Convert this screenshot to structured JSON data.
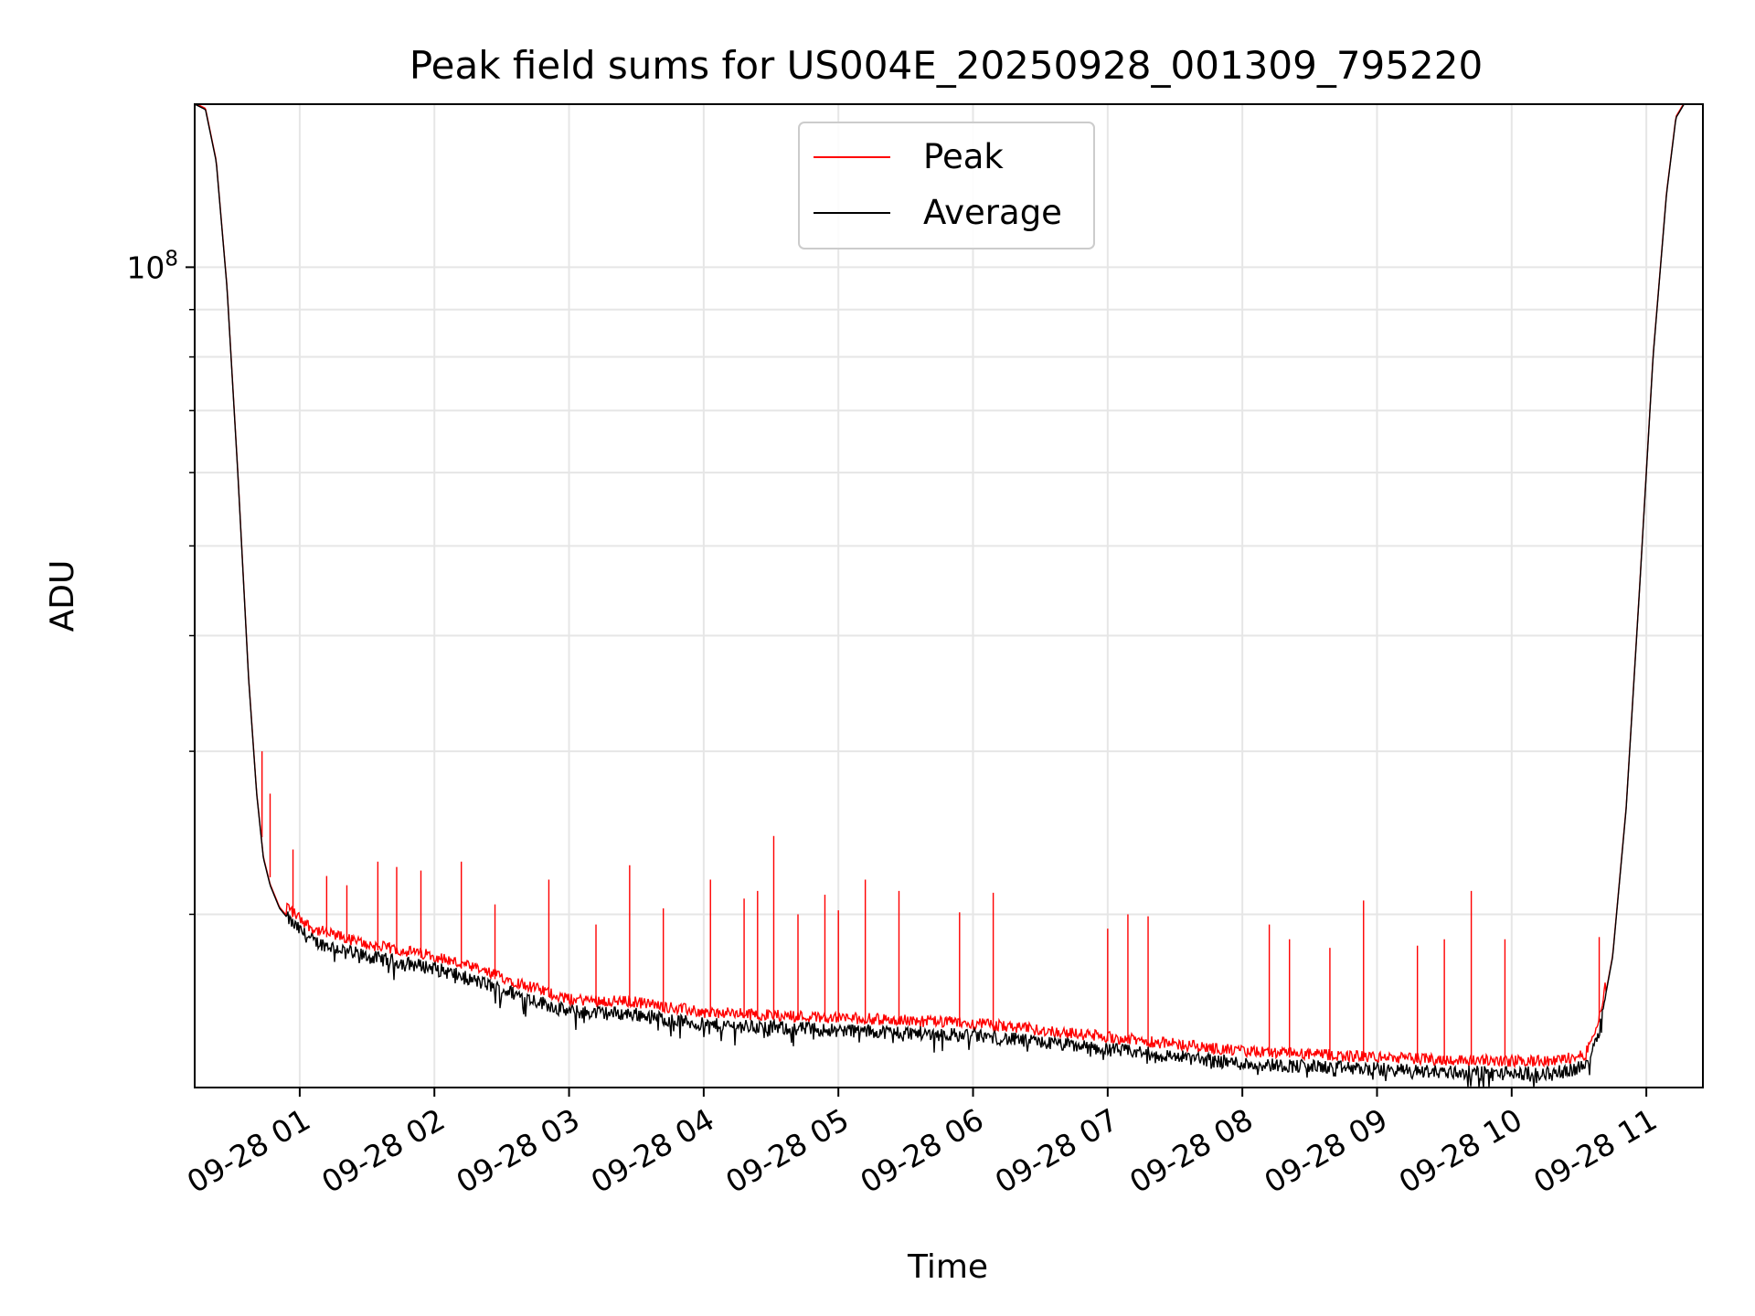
{
  "chart_data": {
    "type": "line",
    "title": "Peak field sums for US004E_20250928_001309_795220",
    "xlabel": "Time",
    "ylabel": "ADU",
    "yscale": "log",
    "ylim": [
      13000000,
      150000000
    ],
    "xlim_hours": [
      0.22,
      11.42
    ],
    "grid": true,
    "legend_position": "upper-center",
    "x_tick_hours": [
      1,
      2,
      3,
      4,
      5,
      6,
      7,
      8,
      9,
      10,
      11
    ],
    "x_ticks": [
      "09-28 01",
      "09-28 02",
      "09-28 03",
      "09-28 04",
      "09-28 05",
      "09-28 06",
      "09-28 07",
      "09-28 08",
      "09-28 09",
      "09-28 10",
      "09-28 11"
    ],
    "y_major_tick": {
      "value": 100000000,
      "label_base": "10",
      "label_exp": "8"
    },
    "y_minor_ticks": [
      20000000,
      30000000,
      40000000,
      50000000,
      60000000,
      70000000,
      80000000,
      90000000
    ],
    "baseline": {
      "hours": [
        0.22,
        0.3,
        0.38,
        0.46,
        0.54,
        0.62,
        0.68,
        0.73,
        0.78,
        0.85,
        0.95,
        1.1,
        1.5,
        2.0,
        2.5,
        3.0,
        3.5,
        4.0,
        5.0,
        6.0,
        7.0,
        8.0,
        9.0,
        9.6,
        10.3,
        10.55,
        10.65,
        10.75,
        10.85,
        10.95,
        11.05,
        11.15,
        11.22,
        11.28,
        11.42
      ],
      "average": [
        150000000,
        148000000,
        130000000,
        95000000,
        60000000,
        36000000,
        27000000,
        23000000,
        21500000,
        20300000,
        19500000,
        18700000,
        18000000,
        17500000,
        16600000,
        15700000,
        15600000,
        15200000,
        15000000,
        14800000,
        14300000,
        13800000,
        13600000,
        13500000,
        13450000,
        13700000,
        15000000,
        18000000,
        26000000,
        45000000,
        80000000,
        120000000,
        145000000,
        150000000,
        150000000
      ]
    },
    "series": [
      {
        "name": "Peak",
        "color": "#ff0000",
        "spikes": [
          [
            0.72,
            30000000
          ],
          [
            0.78,
            27000000
          ],
          [
            0.95,
            23500000
          ],
          [
            1.2,
            22000000
          ],
          [
            1.35,
            21500000
          ],
          [
            1.58,
            22800000
          ],
          [
            1.72,
            22500000
          ],
          [
            1.9,
            22300000
          ],
          [
            2.2,
            22800000
          ],
          [
            2.45,
            20500000
          ],
          [
            2.85,
            21800000
          ],
          [
            3.2,
            19500000
          ],
          [
            3.45,
            22600000
          ],
          [
            3.7,
            20300000
          ],
          [
            4.05,
            21800000
          ],
          [
            4.3,
            20800000
          ],
          [
            4.4,
            21200000
          ],
          [
            4.52,
            24300000
          ],
          [
            4.7,
            20000000
          ],
          [
            4.9,
            21000000
          ],
          [
            5.0,
            20200000
          ],
          [
            5.2,
            21800000
          ],
          [
            5.45,
            21200000
          ],
          [
            5.9,
            20100000
          ],
          [
            6.15,
            21100000
          ],
          [
            7.0,
            19300000
          ],
          [
            7.15,
            20000000
          ],
          [
            7.3,
            19900000
          ],
          [
            8.2,
            19500000
          ],
          [
            8.35,
            18800000
          ],
          [
            8.65,
            18400000
          ],
          [
            8.9,
            20700000
          ],
          [
            9.3,
            18500000
          ],
          [
            9.5,
            18800000
          ],
          [
            9.7,
            21200000
          ],
          [
            9.95,
            18800000
          ],
          [
            10.65,
            18900000
          ]
        ]
      },
      {
        "name": "Average",
        "color": "#000000"
      }
    ]
  }
}
